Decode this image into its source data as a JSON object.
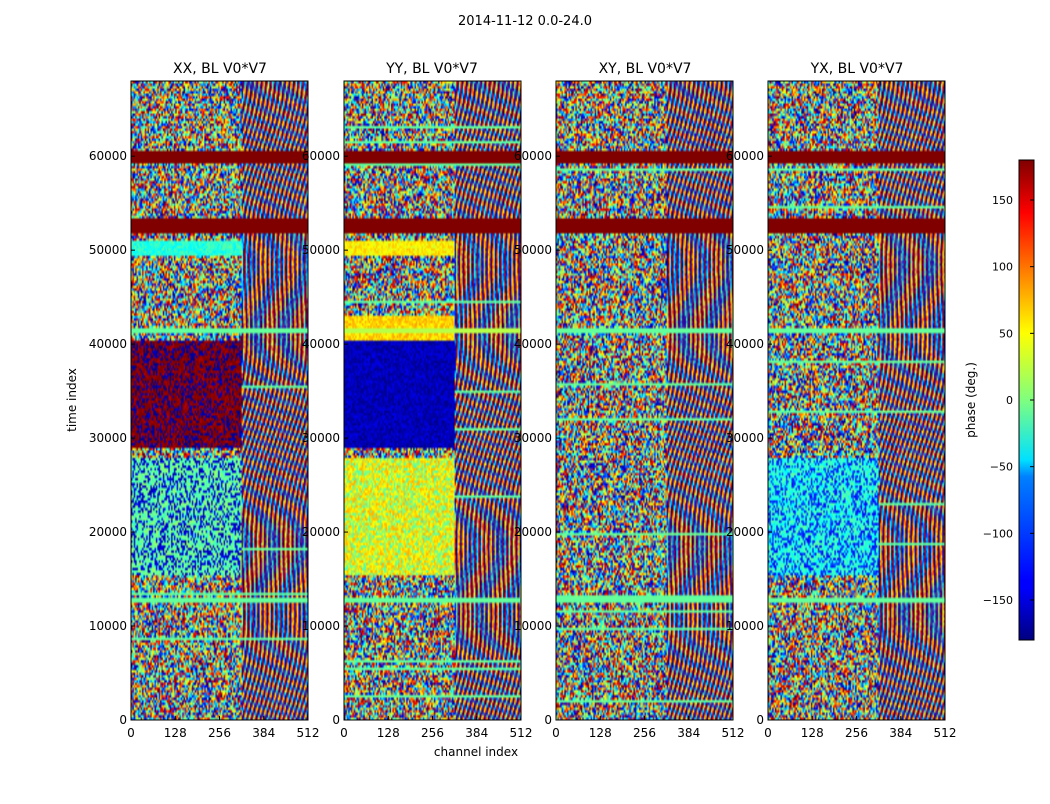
{
  "figure": {
    "title": "2014-11-12 0.0-24.0",
    "xlabel": "channel index",
    "ylabel": "time index",
    "colorbar_label": "phase (deg.)"
  },
  "colors": {
    "background": "#ffffff",
    "axes": "#000000",
    "flag": "#800000"
  },
  "colorbar": {
    "colormap": "jet",
    "range": [
      -180,
      180
    ],
    "ticks": [
      {
        "value": 150,
        "label": "150"
      },
      {
        "value": 100,
        "label": "100"
      },
      {
        "value": 50,
        "label": "50"
      },
      {
        "value": 0,
        "label": "0"
      },
      {
        "value": -50,
        "label": "−50"
      },
      {
        "value": -100,
        "label": "−100"
      },
      {
        "value": -150,
        "label": "−150"
      }
    ]
  },
  "chart_data": [
    {
      "type": "heatmap",
      "title": "XX, BL V0*V7",
      "xlabel": "",
      "ylabel": "time index",
      "xlim": [
        0,
        512
      ],
      "ylim": [
        0,
        68000
      ],
      "xticks": [
        0,
        128,
        256,
        384,
        512
      ],
      "yticks": [
        0,
        10000,
        20000,
        30000,
        40000,
        50000,
        60000
      ],
      "zlabel": "phase (deg.)",
      "zlim": [
        -180,
        180
      ],
      "uniform_bands": [
        {
          "t": [
            59300,
            60500
          ],
          "phase": 180
        },
        {
          "t": [
            51800,
            53400
          ],
          "phase": 180
        },
        {
          "t": [
            12400,
            13000
          ],
          "phase": -10
        },
        {
          "t": [
            41200,
            41700
          ],
          "phase": -10
        }
      ],
      "regions": [
        {
          "ch": [
            0,
            320
          ],
          "t": [
            29000,
            40500
          ],
          "phase": 180,
          "alt_phase": -170
        },
        {
          "ch": [
            0,
            320
          ],
          "t": [
            15500,
            28000
          ],
          "phase": -10,
          "alt_phase": -150
        },
        {
          "ch": [
            0,
            320
          ],
          "t": [
            49500,
            51000
          ],
          "phase": -30
        }
      ]
    },
    {
      "type": "heatmap",
      "title": "YY, BL V0*V7",
      "xlabel": "channel index",
      "ylabel": "",
      "xlim": [
        0,
        512
      ],
      "ylim": [
        0,
        68000
      ],
      "xticks": [
        0,
        128,
        256,
        384,
        512
      ],
      "yticks": [
        0,
        10000,
        20000,
        30000,
        40000,
        50000,
        60000
      ],
      "zlabel": "phase (deg.)",
      "zlim": [
        -180,
        180
      ],
      "uniform_bands": [
        {
          "t": [
            59300,
            60500
          ],
          "phase": 180
        },
        {
          "t": [
            51800,
            53400
          ],
          "phase": 180
        },
        {
          "t": [
            12400,
            13000
          ],
          "phase": -10
        },
        {
          "t": [
            41200,
            41700
          ],
          "phase": 20
        }
      ],
      "regions": [
        {
          "ch": [
            0,
            320
          ],
          "t": [
            29000,
            40500
          ],
          "phase": -160
        },
        {
          "ch": [
            0,
            320
          ],
          "t": [
            15500,
            28000
          ],
          "phase": 55,
          "alt_phase": -5
        },
        {
          "ch": [
            0,
            320
          ],
          "t": [
            40500,
            43000
          ],
          "phase": 60
        },
        {
          "ch": [
            0,
            320
          ],
          "t": [
            49500,
            51000
          ],
          "phase": 50
        }
      ]
    },
    {
      "type": "heatmap",
      "title": "XY, BL V0*V7",
      "xlabel": "",
      "ylabel": "",
      "xlim": [
        0,
        512
      ],
      "ylim": [
        0,
        68000
      ],
      "xticks": [
        0,
        128,
        256,
        384,
        512
      ],
      "yticks": [
        0,
        10000,
        20000,
        30000,
        40000,
        50000,
        60000
      ],
      "zlabel": "phase (deg.)",
      "zlim": [
        -180,
        180
      ],
      "uniform_bands": [
        {
          "t": [
            59300,
            60500
          ],
          "phase": 180
        },
        {
          "t": [
            51800,
            53400
          ],
          "phase": 180
        },
        {
          "t": [
            12400,
            13000
          ],
          "phase": -10
        },
        {
          "t": [
            41200,
            41700
          ],
          "phase": -10
        }
      ],
      "regions": []
    },
    {
      "type": "heatmap",
      "title": "YX, BL V0*V7",
      "xlabel": "",
      "ylabel": "",
      "xlim": [
        0,
        512
      ],
      "ylim": [
        0,
        68000
      ],
      "xticks": [
        0,
        128,
        256,
        384,
        512
      ],
      "yticks": [
        0,
        10000,
        20000,
        30000,
        40000,
        50000,
        60000
      ],
      "zlabel": "phase (deg.)",
      "zlim": [
        -180,
        180
      ],
      "uniform_bands": [
        {
          "t": [
            59300,
            60500
          ],
          "phase": 180
        },
        {
          "t": [
            51800,
            53400
          ],
          "phase": 180
        },
        {
          "t": [
            12400,
            13000
          ],
          "phase": -10
        },
        {
          "t": [
            41200,
            41700
          ],
          "phase": -10
        }
      ],
      "regions": [
        {
          "ch": [
            0,
            320
          ],
          "t": [
            15500,
            28000
          ],
          "phase": -30,
          "alt_phase": -120
        }
      ]
    }
  ]
}
